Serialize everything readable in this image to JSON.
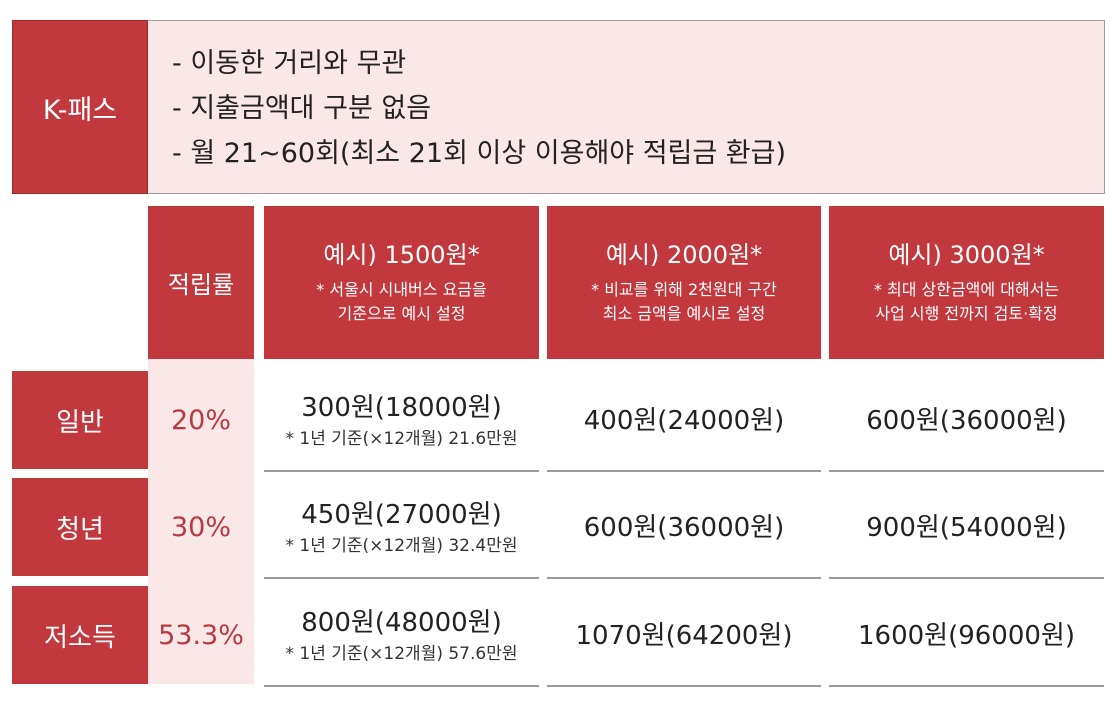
{
  "kpass": {
    "label": "K-패스",
    "lines": [
      "- 이동한 거리와 무관",
      "- 지출금액대 구분 없음",
      "- 월 21~60회(최소 21회 이상 이용해야 적립금 환급)"
    ]
  },
  "header": {
    "rate": "적립률",
    "examples": [
      {
        "title": "예시) 1500원*",
        "note1": "* 서울시 시내버스 요금을",
        "note2": "기준으로 예시 설정"
      },
      {
        "title": "예시) 2000원*",
        "note1": "* 비교를 위해 2천원대 구간",
        "note2": "최소 금액을 예시로 설정"
      },
      {
        "title": "예시) 3000원*",
        "note1": "* 최대 상한금액에 대해서는",
        "note2": "사업 시행 전까지 검토·확정"
      }
    ]
  },
  "rows": [
    {
      "label": "일반",
      "rate": "20%",
      "ex1": "300원(18000원)",
      "ex1_note": "* 1년 기준(×12개월) 21.6만원",
      "ex2": "400원(24000원)",
      "ex3": "600원(36000원)"
    },
    {
      "label": "청년",
      "rate": "30%",
      "ex1": "450원(27000원)",
      "ex1_note": "* 1년 기준(×12개월) 32.4만원",
      "ex2": "600원(36000원)",
      "ex3": "900원(54000원)"
    },
    {
      "label": "저소득",
      "rate": "53.3%",
      "ex1": "800원(48000원)",
      "ex1_note": "* 1년 기준(×12개월) 57.6만원",
      "ex2": "1070원(64200원)",
      "ex3": "1600원(96000원)"
    }
  ],
  "colors": {
    "accent_red": "#c1383d",
    "light_pink": "#fae8e8",
    "rate_text": "#b83a3f"
  }
}
